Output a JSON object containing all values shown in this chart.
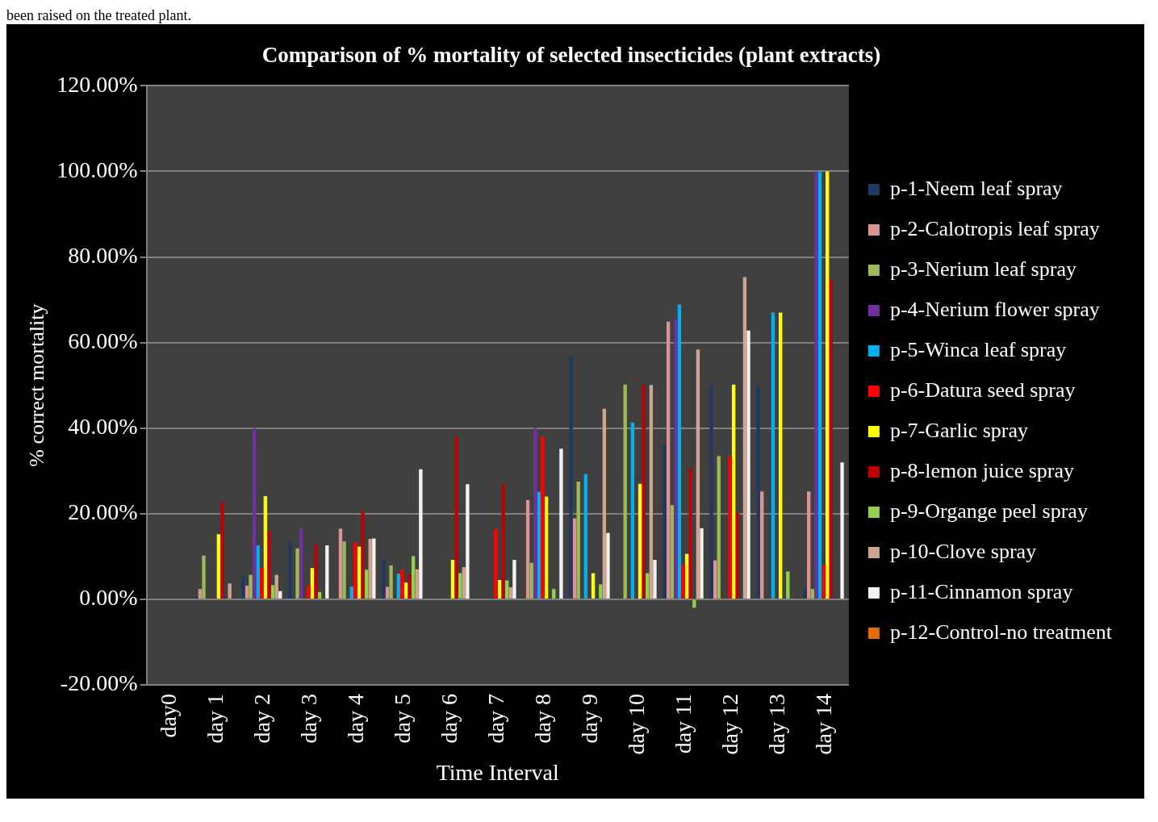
{
  "chart_data": {
    "type": "bar",
    "title": "Comparison of % mortality of selected insecticides (plant extracts)",
    "xlabel": "Time Interval",
    "ylabel": "% correct mortality",
    "annotations": [
      "been raised on the treated plant."
    ],
    "categories": [
      "day0",
      "day 1",
      "day 2",
      "day 3",
      "day 4",
      "day 5",
      "day 6",
      "day 7",
      "day 8",
      "day 9",
      "day 10",
      "day 11",
      "day 12",
      "day 13",
      "day 14"
    ],
    "series": [
      {
        "name": "p-1-Neem leaf spray",
        "color": "#1f3864",
        "values": [
          0,
          0.5,
          5.3,
          13.6,
          0,
          9.3,
          0,
          0,
          0,
          56.8,
          0,
          35.9,
          50.2,
          50.2,
          2.4
        ]
      },
      {
        "name": "p-2-Calotropis leaf spray",
        "color": "#d99594",
        "values": [
          0,
          2.4,
          3.2,
          0,
          16.5,
          2.9,
          0,
          0,
          23.2,
          18.9,
          0,
          64.9,
          9.1,
          25.2,
          25.2
        ]
      },
      {
        "name": "p-3-Nerium leaf spray",
        "color": "#9bbb59",
        "values": [
          0,
          10.2,
          5.7,
          11.9,
          13.5,
          7.9,
          0,
          0,
          8.5,
          27.5,
          50.2,
          22,
          33.5,
          0,
          2.4
        ]
      },
      {
        "name": "p-4-Nerium flower spray",
        "color": "#7030a0",
        "values": [
          0,
          0,
          40,
          16.7,
          0,
          0,
          0,
          0,
          40.1,
          0,
          0,
          65.4,
          0,
          0,
          100
        ]
      },
      {
        "name": "p-5-Winca leaf spray",
        "color": "#00b0f0",
        "values": [
          0,
          0,
          12.6,
          0,
          3,
          6,
          0,
          0,
          25.1,
          29.3,
          41.3,
          68.9,
          0,
          67,
          100
        ]
      },
      {
        "name": "p-6-Datura seed spray",
        "color": "#ff0000",
        "values": [
          0,
          0,
          7.5,
          3.3,
          13.3,
          6.9,
          0,
          16.5,
          38.1,
          0,
          0,
          8.1,
          33.5,
          0,
          8.1
        ]
      },
      {
        "name": "p-7-Garlic spray",
        "color": "#ffff00",
        "values": [
          0,
          15.2,
          24.1,
          7.3,
          12.3,
          3.9,
          9.2,
          4.5,
          24,
          6.1,
          27,
          10.6,
          50.2,
          67,
          100
        ]
      },
      {
        "name": "p-8-lemon juice spray",
        "color": "#c00000",
        "values": [
          0,
          22.7,
          16,
          13.1,
          20.6,
          5.9,
          38.1,
          26.9,
          0,
          0,
          50.2,
          30.6,
          20.3,
          0,
          74.8
        ]
      },
      {
        "name": "p-9-Organge peel spray",
        "color": "#92d050",
        "values": [
          0,
          0,
          3.3,
          1.7,
          6.9,
          10.1,
          6.1,
          4.4,
          2.4,
          3.5,
          6.1,
          -2,
          0,
          6.5,
          0
        ]
      },
      {
        "name": "p-10-Clove spray",
        "color": "#cfa58f",
        "values": [
          0,
          3.7,
          5.7,
          0,
          14.1,
          7,
          7.5,
          2.8,
          0,
          44.5,
          50.1,
          58.4,
          75.3,
          0,
          0
        ]
      },
      {
        "name": "p-11-Cinnamon spray",
        "color": "#f2f2f2",
        "values": [
          0,
          0,
          1.9,
          12.6,
          14.2,
          30.4,
          26.9,
          9.2,
          35.2,
          15.5,
          9.2,
          16.6,
          62.8,
          0,
          32
        ]
      },
      {
        "name": "p-12-Control-no treatment",
        "color": "#e46c0a",
        "values": [
          0,
          0,
          0,
          0,
          0,
          0,
          0,
          0,
          0,
          0,
          0,
          0,
          0,
          0,
          0
        ]
      }
    ],
    "ylim": [
      -20,
      120
    ],
    "yticks": [
      {
        "value": -20,
        "label": "-20.00%"
      },
      {
        "value": 0,
        "label": "0.00%"
      },
      {
        "value": 20,
        "label": "20.00%"
      },
      {
        "value": 40,
        "label": "40.00%"
      },
      {
        "value": 60,
        "label": "60.00%"
      },
      {
        "value": 80,
        "label": "80.00%"
      },
      {
        "value": 100,
        "label": "100.00%"
      },
      {
        "value": 120,
        "label": "120.00%"
      }
    ],
    "grid": "y",
    "legend": "right"
  }
}
